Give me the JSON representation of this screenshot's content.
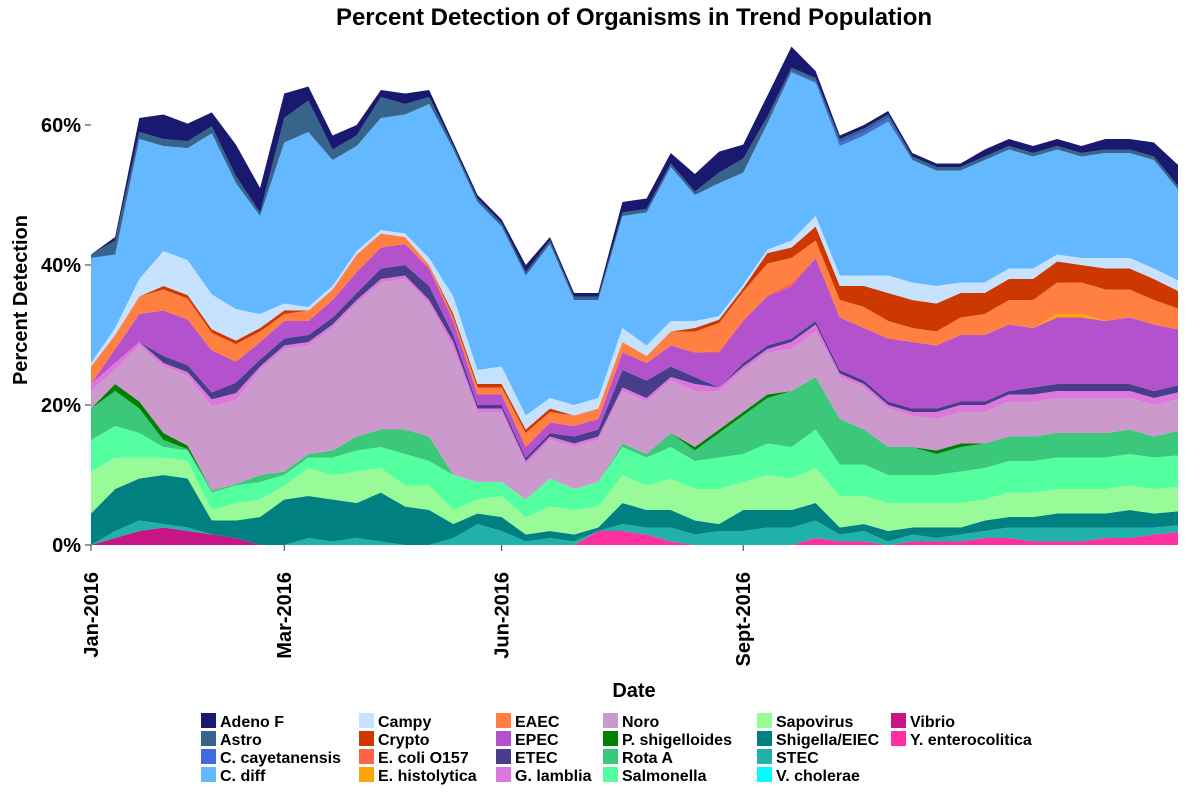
{
  "chart_data": {
    "type": "area",
    "title": "Percent Detection of Organisms in Trend Population",
    "xlabel": "Date",
    "ylabel": "Percent Detection",
    "ylim": [
      0,
      0.7
    ],
    "y_ticks": [
      0,
      0.2,
      0.4,
      0.6
    ],
    "y_tick_labels": [
      "0%",
      "20%",
      "40%",
      "60%"
    ],
    "x_tick_labels": [
      "Jan-2016",
      "Mar-2016",
      "Jun-2016",
      "Sept-2016"
    ],
    "x_tick_index": [
      0,
      8,
      17,
      27
    ],
    "grid": false,
    "stacked": true,
    "legend_position": "bottom",
    "x": [
      "2016-01-01",
      "2016-01-08",
      "2016-01-15",
      "2016-01-22",
      "2016-01-29",
      "2016-02-05",
      "2016-02-12",
      "2016-02-19",
      "2016-02-26",
      "2016-03-04",
      "2016-03-11",
      "2016-03-18",
      "2016-03-25",
      "2016-04-01",
      "2016-04-08",
      "2016-04-15",
      "2016-04-22",
      "2016-04-29",
      "2016-05-06",
      "2016-05-13",
      "2016-05-20",
      "2016-05-27",
      "2016-06-03",
      "2016-06-10",
      "2016-06-17",
      "2016-06-24",
      "2016-07-01",
      "2016-07-08",
      "2016-07-15",
      "2016-07-22",
      "2016-07-29",
      "2016-08-05",
      "2016-08-12",
      "2016-08-19",
      "2016-08-26",
      "2016-09-02",
      "2016-09-09",
      "2016-09-16",
      "2016-09-23",
      "2016-09-30",
      "2016-10-07",
      "2016-10-14",
      "2016-10-21",
      "2016-10-28",
      "2016-11-04",
      "2016-11-11"
    ],
    "series": [
      {
        "name": "Y. enterocolitica",
        "color": "#ff2fa0",
        "values": [
          0,
          0,
          0,
          0,
          0,
          0,
          0,
          0,
          0,
          0,
          0,
          0,
          0,
          0,
          0,
          0,
          0,
          0,
          0,
          0,
          0,
          0.02,
          0.02,
          0.015,
          0.005,
          0,
          0,
          0,
          0,
          0,
          0.01,
          0.005,
          0.005,
          0,
          0.005,
          0.005,
          0.005,
          0.01,
          0.01,
          0.005,
          0.005,
          0.005,
          0.01,
          0.01,
          0.015,
          0.018
        ]
      },
      {
        "name": "Vibrio",
        "color": "#c71585",
        "values": [
          0,
          0.01,
          0.02,
          0.025,
          0.02,
          0.015,
          0.01,
          0,
          0,
          0,
          0,
          0,
          0,
          0,
          0,
          0,
          0,
          0,
          0,
          0,
          0,
          0,
          0,
          0,
          0,
          0,
          0,
          0,
          0,
          0,
          0,
          0,
          0,
          0,
          0,
          0,
          0,
          0,
          0,
          0,
          0,
          0,
          0,
          0,
          0,
          0
        ]
      },
      {
        "name": "V. cholerae",
        "color": "#00ffff",
        "values": [
          0,
          0,
          0,
          0,
          0,
          0,
          0,
          0,
          0,
          0,
          0,
          0,
          0,
          0,
          0,
          0,
          0,
          0,
          0,
          0,
          0,
          0,
          0,
          0,
          0,
          0,
          0,
          0,
          0,
          0,
          0,
          0,
          0,
          0,
          0,
          0,
          0,
          0,
          0,
          0,
          0,
          0,
          0,
          0,
          0,
          0
        ]
      },
      {
        "name": "STEC",
        "color": "#20b2aa",
        "values": [
          0,
          0.01,
          0.015,
          0.005,
          0.005,
          0,
          0,
          0,
          0,
          0.01,
          0.005,
          0.01,
          0.005,
          0,
          0,
          0.01,
          0.03,
          0.02,
          0.005,
          0.01,
          0.005,
          0,
          0.01,
          0.01,
          0.02,
          0.015,
          0.02,
          0.02,
          0.025,
          0.025,
          0.025,
          0.01,
          0.015,
          0.005,
          0.01,
          0.005,
          0.01,
          0.01,
          0.015,
          0.02,
          0.02,
          0.02,
          0.015,
          0.015,
          0.01,
          0.01
        ]
      },
      {
        "name": "Shigella/EIEC",
        "color": "#008080",
        "values": [
          0.045,
          0.06,
          0.06,
          0.07,
          0.07,
          0.02,
          0.025,
          0.04,
          0.065,
          0.06,
          0.06,
          0.05,
          0.07,
          0.055,
          0.05,
          0.02,
          0.015,
          0.02,
          0.01,
          0.01,
          0.01,
          0.005,
          0.03,
          0.025,
          0.025,
          0.02,
          0.01,
          0.03,
          0.025,
          0.025,
          0.025,
          0.01,
          0.01,
          0.015,
          0.01,
          0.015,
          0.01,
          0.015,
          0.015,
          0.015,
          0.02,
          0.02,
          0.02,
          0.025,
          0.02,
          0.02
        ]
      },
      {
        "name": "Sapovirus",
        "color": "#98fb98",
        "values": [
          0.06,
          0.045,
          0.03,
          0.025,
          0.025,
          0.015,
          0.025,
          0.025,
          0.02,
          0.04,
          0.035,
          0.045,
          0.035,
          0.03,
          0.035,
          0.02,
          0.02,
          0.03,
          0.025,
          0.035,
          0.035,
          0.03,
          0.04,
          0.035,
          0.045,
          0.045,
          0.05,
          0.04,
          0.05,
          0.045,
          0.05,
          0.045,
          0.04,
          0.04,
          0.035,
          0.035,
          0.035,
          0.03,
          0.035,
          0.035,
          0.035,
          0.035,
          0.035,
          0.035,
          0.035,
          0.035
        ]
      },
      {
        "name": "Salmonella",
        "color": "#54ff9f",
        "values": [
          0.045,
          0.045,
          0.035,
          0.015,
          0.015,
          0.025,
          0.025,
          0.025,
          0.015,
          0.015,
          0.025,
          0.03,
          0.03,
          0.045,
          0.035,
          0.05,
          0.025,
          0.02,
          0.025,
          0.04,
          0.03,
          0.035,
          0.04,
          0.04,
          0.045,
          0.04,
          0.045,
          0.04,
          0.045,
          0.045,
          0.055,
          0.045,
          0.045,
          0.04,
          0.04,
          0.04,
          0.045,
          0.045,
          0.045,
          0.045,
          0.045,
          0.045,
          0.045,
          0.045,
          0.045,
          0.045
        ]
      },
      {
        "name": "Rota A",
        "color": "#3cc87a",
        "values": [
          0.045,
          0.05,
          0.035,
          0.01,
          0.002,
          0.003,
          0.002,
          0.01,
          0.005,
          0.005,
          0.01,
          0.02,
          0.025,
          0.035,
          0.035,
          0,
          0,
          0,
          0,
          0,
          0,
          0,
          0.005,
          0.005,
          0.02,
          0.015,
          0.035,
          0.055,
          0.065,
          0.08,
          0.075,
          0.065,
          0.05,
          0.04,
          0.04,
          0.03,
          0.035,
          0.035,
          0.035,
          0.035,
          0.035,
          0.035,
          0.035,
          0.035,
          0.03,
          0.035
        ]
      },
      {
        "name": "P. shigelloides",
        "color": "#008000",
        "values": [
          0,
          0.01,
          0.01,
          0.01,
          0.005,
          0,
          0,
          0,
          0,
          0,
          0,
          0,
          0,
          0,
          0,
          0,
          0,
          0,
          0,
          0,
          0,
          0,
          0,
          0,
          0,
          0.005,
          0.005,
          0.005,
          0.005,
          0,
          0,
          0,
          0,
          0,
          0,
          0.005,
          0.005,
          0,
          0,
          0,
          0,
          0,
          0,
          0,
          0,
          0
        ]
      },
      {
        "name": "Noro",
        "color": "#cc99cc",
        "values": [
          0.025,
          0.02,
          0.08,
          0.095,
          0.1,
          0.12,
          0.12,
          0.15,
          0.175,
          0.155,
          0.175,
          0.19,
          0.21,
          0.215,
          0.19,
          0.18,
          0.1,
          0.1,
          0.05,
          0.055,
          0.06,
          0.06,
          0.075,
          0.075,
          0.075,
          0.08,
          0.055,
          0.06,
          0.06,
          0.06,
          0.065,
          0.06,
          0.06,
          0.055,
          0.045,
          0.045,
          0.045,
          0.045,
          0.05,
          0.05,
          0.05,
          0.05,
          0.05,
          0.045,
          0.045,
          0.045
        ]
      },
      {
        "name": "G. lamblia",
        "color": "#dd77dd",
        "values": [
          0.01,
          0.01,
          0.005,
          0.005,
          0.005,
          0.01,
          0.01,
          0.005,
          0.005,
          0.005,
          0.005,
          0.005,
          0.005,
          0.005,
          0.005,
          0.01,
          0.005,
          0.005,
          0.005,
          0.005,
          0.005,
          0.005,
          0.005,
          0.005,
          0.005,
          0.01,
          0.005,
          0.005,
          0.005,
          0.01,
          0.01,
          0.005,
          0.005,
          0.005,
          0.005,
          0.01,
          0.01,
          0.01,
          0.01,
          0.01,
          0.01,
          0.01,
          0.01,
          0.01,
          0.01,
          0.01
        ]
      },
      {
        "name": "ETEC",
        "color": "#483d8b",
        "values": [
          0,
          0,
          0,
          0.01,
          0.01,
          0.01,
          0.015,
          0.01,
          0.01,
          0.01,
          0.01,
          0.01,
          0.015,
          0.015,
          0.02,
          0.01,
          0.005,
          0.005,
          0.005,
          0.005,
          0.01,
          0.01,
          0.025,
          0.025,
          0.015,
          0.01,
          0,
          0.005,
          0.005,
          0.005,
          0.005,
          0.005,
          0.005,
          0.005,
          0.005,
          0.005,
          0.005,
          0.005,
          0.005,
          0.01,
          0.01,
          0.01,
          0.01,
          0.01,
          0.01,
          0.01
        ]
      },
      {
        "name": "EPEC",
        "color": "#b452cd",
        "values": [
          0,
          0.02,
          0.04,
          0.065,
          0.065,
          0.06,
          0.03,
          0.025,
          0.025,
          0.02,
          0.025,
          0.03,
          0.03,
          0.03,
          0.025,
          0.02,
          0.015,
          0.015,
          0.015,
          0.015,
          0.015,
          0.015,
          0.025,
          0.025,
          0.03,
          0.035,
          0.05,
          0.06,
          0.07,
          0.075,
          0.09,
          0.075,
          0.075,
          0.09,
          0.095,
          0.09,
          0.095,
          0.095,
          0.095,
          0.085,
          0.095,
          0.095,
          0.09,
          0.095,
          0.095,
          0.08
        ]
      },
      {
        "name": "E. histolytica",
        "color": "#ffa500",
        "values": [
          0,
          0,
          0,
          0,
          0,
          0,
          0,
          0,
          0,
          0,
          0,
          0,
          0,
          0,
          0,
          0,
          0,
          0,
          0,
          0,
          0,
          0,
          0,
          0,
          0,
          0,
          0,
          0,
          0,
          0,
          0,
          0,
          0,
          0,
          0,
          0,
          0,
          0,
          0,
          0,
          0.005,
          0.005,
          0,
          0,
          0,
          0
        ]
      },
      {
        "name": "E. coli O157",
        "color": "#ff6347",
        "values": [
          0,
          0,
          0,
          0,
          0,
          0,
          0,
          0,
          0,
          0,
          0,
          0,
          0,
          0,
          0,
          0,
          0,
          0,
          0,
          0,
          0,
          0,
          0,
          0,
          0,
          0,
          0.002,
          0.002,
          0.002,
          0.005,
          0,
          0,
          0,
          0,
          0,
          0,
          0,
          0,
          0,
          0,
          0,
          0,
          0,
          0,
          0,
          0
        ]
      },
      {
        "name": "EAEC",
        "color": "#ff8040",
        "values": [
          0.025,
          0.02,
          0.025,
          0.03,
          0.03,
          0.025,
          0.025,
          0.015,
          0.01,
          0.015,
          0.015,
          0.025,
          0.02,
          0.01,
          0.005,
          0.005,
          0.01,
          0.01,
          0.02,
          0.015,
          0.015,
          0.015,
          0.015,
          0.01,
          0.02,
          0.03,
          0.04,
          0.04,
          0.045,
          0.035,
          0.025,
          0.025,
          0.03,
          0.025,
          0.02,
          0.02,
          0.025,
          0.03,
          0.035,
          0.04,
          0.045,
          0.045,
          0.045,
          0.04,
          0.035,
          0.03
        ]
      },
      {
        "name": "Crypto",
        "color": "#cd3700",
        "values": [
          0,
          0,
          0,
          0.005,
          0.005,
          0.005,
          0.005,
          0.005,
          0.005,
          0,
          0,
          0,
          0,
          0,
          0,
          0.005,
          0.005,
          0.005,
          0.005,
          0.005,
          0,
          0,
          0,
          0,
          0,
          0.005,
          0.005,
          0.005,
          0.015,
          0.015,
          0.02,
          0.02,
          0.03,
          0.04,
          0.04,
          0.04,
          0.035,
          0.03,
          0.03,
          0.03,
          0.03,
          0.025,
          0.03,
          0.03,
          0.03,
          0.025
        ]
      },
      {
        "name": "Campy",
        "color": "#c6e2ff",
        "values": [
          0.005,
          0.01,
          0.025,
          0.05,
          0.05,
          0.05,
          0.045,
          0.02,
          0.01,
          0.005,
          0.005,
          0.005,
          0.005,
          0.005,
          0.01,
          0.025,
          0.02,
          0.025,
          0.02,
          0.015,
          0.015,
          0.015,
          0.02,
          0.015,
          0.015,
          0.01,
          0.005,
          0.005,
          0.005,
          0.01,
          0.015,
          0.015,
          0.015,
          0.025,
          0.025,
          0.025,
          0.015,
          0.015,
          0.015,
          0.015,
          0.01,
          0.01,
          0.015,
          0.015,
          0.015,
          0.015
        ]
      },
      {
        "name": "C. diff",
        "color": "#63b8ff",
        "values": [
          0.15,
          0.105,
          0.2,
          0.15,
          0.16,
          0.23,
          0.18,
          0.14,
          0.23,
          0.25,
          0.18,
          0.15,
          0.16,
          0.17,
          0.22,
          0.21,
          0.24,
          0.2,
          0.2,
          0.22,
          0.15,
          0.14,
          0.16,
          0.19,
          0.22,
          0.18,
          0.19,
          0.16,
          0.18,
          0.24,
          0.19,
          0.185,
          0.2,
          0.22,
          0.175,
          0.165,
          0.16,
          0.175,
          0.17,
          0.16,
          0.15,
          0.145,
          0.15,
          0.15,
          0.155,
          0.13
        ]
      },
      {
        "name": "C. cayetanensis",
        "color": "#4169e1",
        "values": [
          0,
          0,
          0,
          0,
          0,
          0,
          0,
          0,
          0,
          0,
          0,
          0,
          0,
          0,
          0,
          0,
          0,
          0,
          0,
          0,
          0,
          0,
          0,
          0,
          0,
          0,
          0,
          0,
          0,
          0.002,
          0.002,
          0.005,
          0.005,
          0.005,
          0,
          0,
          0,
          0,
          0,
          0,
          0,
          0,
          0,
          0,
          0,
          0
        ]
      },
      {
        "name": "Astro",
        "color": "#36648b",
        "values": [
          0.005,
          0.02,
          0.01,
          0.01,
          0.01,
          0.01,
          0.01,
          0.005,
          0.035,
          0.045,
          0.015,
          0.015,
          0.03,
          0.015,
          0.01,
          0.005,
          0.005,
          0.005,
          0.005,
          0.005,
          0.005,
          0.005,
          0.005,
          0.005,
          0.005,
          0.005,
          0.015,
          0.02,
          0.01,
          0.005,
          0.005,
          0.005,
          0.005,
          0.005,
          0.005,
          0.005,
          0.005,
          0.005,
          0.005,
          0.005,
          0.005,
          0.005,
          0.005,
          0.005,
          0.005,
          0.005
        ]
      },
      {
        "name": "Adeno F",
        "color": "#191970",
        "values": [
          0,
          0.005,
          0.02,
          0.035,
          0.025,
          0.02,
          0.045,
          0.035,
          0.035,
          0.02,
          0.02,
          0.015,
          0.01,
          0.015,
          0.01,
          0.005,
          0.005,
          0.005,
          0.01,
          0.005,
          0.005,
          0.005,
          0.015,
          0.015,
          0.015,
          0.025,
          0.03,
          0.02,
          0.03,
          0.03,
          0.01,
          0.005,
          0.005,
          0.005,
          0.005,
          0.005,
          0.005,
          0.01,
          0.01,
          0.01,
          0.01,
          0.01,
          0.015,
          0.015,
          0.02,
          0.03
        ]
      }
    ],
    "legend": [
      "Adeno F",
      "Astro",
      "C. cayetanensis",
      "C. diff",
      "Campy",
      "Crypto",
      "E. coli O157",
      "E. histolytica",
      "EAEC",
      "EPEC",
      "ETEC",
      "G. lamblia",
      "Noro",
      "P. shigelloides",
      "Rota A",
      "Salmonella",
      "Sapovirus",
      "Shigella/EIEC",
      "STEC",
      "V. cholerae",
      "Vibrio",
      "Y. enterocolitica"
    ]
  }
}
